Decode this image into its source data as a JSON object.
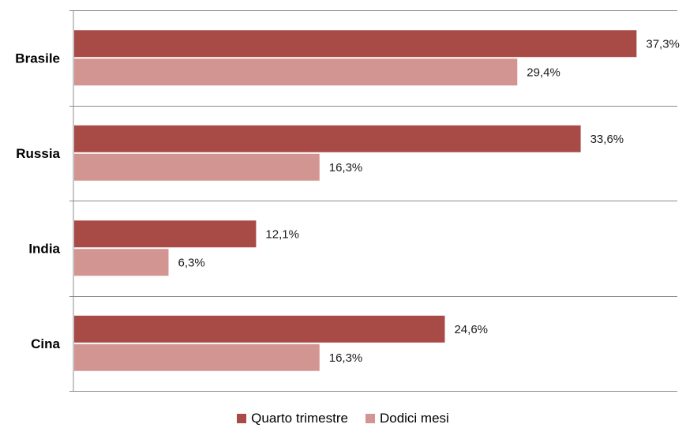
{
  "chart_data": {
    "type": "bar",
    "orientation": "horizontal",
    "categories": [
      "Brasile",
      "Russia",
      "India",
      "Cina"
    ],
    "series": [
      {
        "name": "Quarto trimestre",
        "values": [
          37.3,
          33.6,
          12.1,
          24.6
        ],
        "labels": [
          "37,3%",
          "33,6%",
          "12,1%",
          "24,6%"
        ],
        "color": "#a84a46"
      },
      {
        "name": "Dodici mesi",
        "values": [
          29.4,
          16.3,
          6.3,
          16.3
        ],
        "labels": [
          "29,4%",
          "16,3%",
          "6,3%",
          "16,3%"
        ],
        "color": "#d39592"
      }
    ],
    "xlim": [
      0,
      40
    ],
    "grid": "horizontal separators between categories",
    "legend": "bottom-center",
    "title": "",
    "xlabel": "",
    "ylabel": ""
  }
}
